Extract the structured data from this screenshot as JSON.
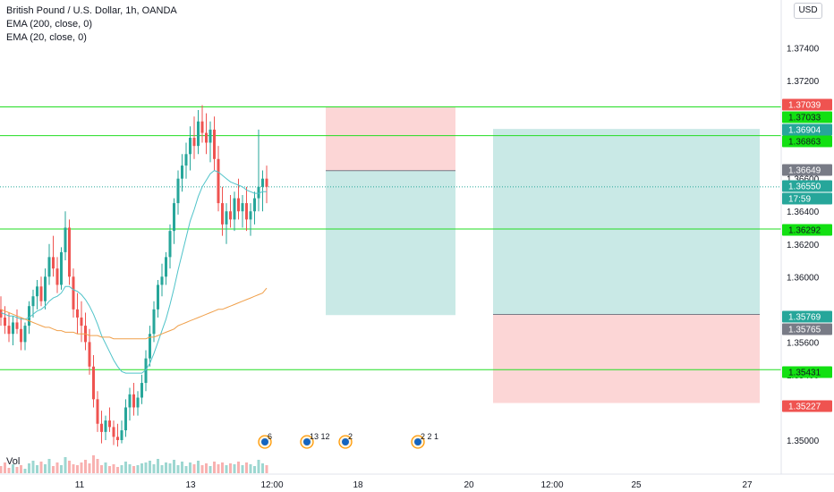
{
  "legend": {
    "symbol": "British Pound / U.S. Dollar, 1h, OANDA",
    "ema200": "EMA (200, close, 0)",
    "ema20": "EMA (20, close, 0)"
  },
  "currency_button": "USD",
  "volume_label": "Vol",
  "colors": {
    "up": "#26a69a",
    "down": "#ef5350",
    "ema20": "#4fc3c9",
    "ema200": "#f0a04b",
    "hline": "#22dd22",
    "tag_green": "#12e012",
    "tag_red": "#ef5350",
    "tag_grey": "#787b86",
    "tag_teal": "#26a69a",
    "tag_dark": "#131722",
    "profit_zone": "#b2dfdb",
    "loss_zone": "#fbcfcf"
  },
  "chart_data": {
    "type": "candlestick",
    "title": "British Pound / U.S. Dollar, 1h, OANDA",
    "y_axis": {
      "range": [
        1.3495,
        1.3765
      ],
      "tick_labels": [
        "1.37400",
        "1.37200",
        "1.36600",
        "1.36400",
        "1.36200",
        "1.36000",
        "1.35600",
        "1.35400",
        "1.35000"
      ],
      "tick_values": [
        1.374,
        1.372,
        1.366,
        1.364,
        1.362,
        1.36,
        1.356,
        1.354,
        1.35
      ]
    },
    "x_axis": {
      "tick_labels": [
        "11",
        "13",
        "12:00",
        "18",
        "20",
        "12:00",
        "25",
        "27"
      ]
    },
    "horizontal_lines": [
      1.37039,
      1.36863,
      1.36292,
      1.35431
    ],
    "price_tags": [
      {
        "label": "1.37039",
        "value": 1.37039,
        "style": "red"
      },
      {
        "label": "1.37033",
        "value": 1.37033,
        "style": "green"
      },
      {
        "label": "1.36904",
        "value": 1.36904,
        "style": "teal"
      },
      {
        "label": "1.36863",
        "value": 1.36863,
        "style": "green"
      },
      {
        "label": "1.36649",
        "value": 1.36649,
        "style": "grey"
      },
      {
        "label": "1.36550",
        "value": 1.3655,
        "style": "teal"
      },
      {
        "label": "17:59",
        "value": 1.3635,
        "style": "teal"
      },
      {
        "label": "1.36292",
        "value": 1.36292,
        "style": "green"
      },
      {
        "label": "1.35769",
        "value": 1.35769,
        "style": "teal"
      },
      {
        "label": "1.35765",
        "value": 1.35765,
        "style": "grey"
      },
      {
        "label": "1.35431",
        "value": 1.35431,
        "style": "green"
      },
      {
        "label": "1.35227",
        "value": 1.35227,
        "style": "red"
      }
    ],
    "positions": [
      {
        "name": "short",
        "entry": 1.36649,
        "stop": 1.37039,
        "target": 1.35765
      },
      {
        "name": "long",
        "entry": 1.35769,
        "stop": 1.35227,
        "target": 1.36904
      }
    ],
    "last_price": 1.3655,
    "candles": [
      [
        1.358,
        1.3588,
        1.357,
        1.3575
      ],
      [
        1.3575,
        1.3582,
        1.3565,
        1.357
      ],
      [
        1.357,
        1.3578,
        1.356,
        1.3565
      ],
      [
        1.3565,
        1.3576,
        1.3558,
        1.3572
      ],
      [
        1.3572,
        1.358,
        1.3565,
        1.3568
      ],
      [
        1.3568,
        1.3575,
        1.3555,
        1.356
      ],
      [
        1.356,
        1.3572,
        1.3555,
        1.357
      ],
      [
        1.357,
        1.3585,
        1.3565,
        1.3582
      ],
      [
        1.3582,
        1.3592,
        1.3575,
        1.3588
      ],
      [
        1.3588,
        1.3598,
        1.358,
        1.3594
      ],
      [
        1.3594,
        1.36,
        1.3582,
        1.3585
      ],
      [
        1.3585,
        1.3605,
        1.358,
        1.36
      ],
      [
        1.36,
        1.362,
        1.3595,
        1.3612
      ],
      [
        1.3612,
        1.3625,
        1.36,
        1.3605
      ],
      [
        1.3605,
        1.3612,
        1.359,
        1.3595
      ],
      [
        1.3595,
        1.3618,
        1.3592,
        1.3615
      ],
      [
        1.3615,
        1.364,
        1.361,
        1.363
      ],
      [
        1.363,
        1.3635,
        1.3595,
        1.36
      ],
      [
        1.36,
        1.3605,
        1.3575,
        1.358
      ],
      [
        1.358,
        1.359,
        1.3565,
        1.3575
      ],
      [
        1.3575,
        1.3585,
        1.356,
        1.357
      ],
      [
        1.357,
        1.3578,
        1.3555,
        1.356
      ],
      [
        1.356,
        1.3568,
        1.354,
        1.3545
      ],
      [
        1.3545,
        1.3552,
        1.352,
        1.3525
      ],
      [
        1.3525,
        1.353,
        1.3505,
        1.351
      ],
      [
        1.351,
        1.3518,
        1.3498,
        1.3505
      ],
      [
        1.3505,
        1.3515,
        1.35,
        1.3512
      ],
      [
        1.3512,
        1.352,
        1.3505,
        1.3508
      ],
      [
        1.3508,
        1.3512,
        1.3497,
        1.3502
      ],
      [
        1.3502,
        1.351,
        1.3496,
        1.35
      ],
      [
        1.35,
        1.3512,
        1.3498,
        1.3506
      ],
      [
        1.3506,
        1.3525,
        1.3502,
        1.352
      ],
      [
        1.352,
        1.3532,
        1.3512,
        1.3528
      ],
      [
        1.3528,
        1.3535,
        1.3515,
        1.352
      ],
      [
        1.352,
        1.353,
        1.3515,
        1.3526
      ],
      [
        1.3526,
        1.354,
        1.3522,
        1.3535
      ],
      [
        1.3535,
        1.3555,
        1.353,
        1.355
      ],
      [
        1.355,
        1.357,
        1.3545,
        1.3565
      ],
      [
        1.3565,
        1.3585,
        1.356,
        1.358
      ],
      [
        1.358,
        1.3598,
        1.3575,
        1.3595
      ],
      [
        1.3595,
        1.3608,
        1.3588,
        1.36
      ],
      [
        1.36,
        1.3615,
        1.3595,
        1.3612
      ],
      [
        1.3612,
        1.3632,
        1.3605,
        1.3628
      ],
      [
        1.3628,
        1.3648,
        1.362,
        1.3645
      ],
      [
        1.3645,
        1.3665,
        1.3638,
        1.366
      ],
      [
        1.366,
        1.3675,
        1.3652,
        1.3668
      ],
      [
        1.3668,
        1.3682,
        1.366,
        1.3675
      ],
      [
        1.3675,
        1.3692,
        1.3665,
        1.3685
      ],
      [
        1.3685,
        1.3698,
        1.3672,
        1.368
      ],
      [
        1.368,
        1.3702,
        1.3675,
        1.3695
      ],
      [
        1.3695,
        1.3705,
        1.3682,
        1.3688
      ],
      [
        1.3688,
        1.37,
        1.3675,
        1.3682
      ],
      [
        1.3682,
        1.3695,
        1.367,
        1.369
      ],
      [
        1.369,
        1.3698,
        1.3665,
        1.3672
      ],
      [
        1.3672,
        1.368,
        1.364,
        1.3645
      ],
      [
        1.3645,
        1.3655,
        1.3625,
        1.3632
      ],
      [
        1.3632,
        1.3645,
        1.362,
        1.364
      ],
      [
        1.364,
        1.365,
        1.363,
        1.3635
      ],
      [
        1.3635,
        1.3652,
        1.3628,
        1.3648
      ],
      [
        1.3648,
        1.366,
        1.3635,
        1.364
      ],
      [
        1.364,
        1.365,
        1.363,
        1.3645
      ],
      [
        1.3645,
        1.3655,
        1.3628,
        1.3635
      ],
      [
        1.3635,
        1.3645,
        1.3625,
        1.364
      ],
      [
        1.364,
        1.3652,
        1.3632,
        1.3648
      ],
      [
        1.3648,
        1.369,
        1.364,
        1.3655
      ],
      [
        1.3655,
        1.3665,
        1.364,
        1.366
      ],
      [
        1.366,
        1.3668,
        1.3645,
        1.3655
      ]
    ],
    "ema20": [
      1.3578,
      1.3577,
      1.3576,
      1.3576,
      1.3575,
      1.3574,
      1.3574,
      1.3575,
      1.3577,
      1.3579,
      1.358,
      1.3582,
      1.3585,
      1.3587,
      1.3588,
      1.359,
      1.3594,
      1.3594,
      1.3592,
      1.3591,
      1.3589,
      1.3586,
      1.3582,
      1.3577,
      1.3571,
      1.3564,
      1.3559,
      1.3554,
      1.3549,
      1.3545,
      1.3542,
      1.3541,
      1.3541,
      1.3541,
      1.3541,
      1.3541,
      1.3543,
      1.3547,
      1.3553,
      1.356,
      1.3567,
      1.3574,
      1.3583,
      1.3593,
      1.3604,
      1.3614,
      1.3624,
      1.3634,
      1.3641,
      1.3649,
      1.3655,
      1.3659,
      1.3663,
      1.3665,
      1.3664,
      1.3662,
      1.366,
      1.3658,
      1.3657,
      1.3656,
      1.3655,
      1.3653,
      1.3652,
      1.3651,
      1.3651,
      1.3652,
      1.3652
    ],
    "ema200": [
      1.358,
      1.3579,
      1.3578,
      1.3577,
      1.3576,
      1.3575,
      1.3574,
      1.3573,
      1.3572,
      1.3571,
      1.357,
      1.3569,
      1.3569,
      1.3568,
      1.3567,
      1.3567,
      1.3566,
      1.3566,
      1.3566,
      1.3565,
      1.3565,
      1.3565,
      1.3564,
      1.3564,
      1.3564,
      1.3563,
      1.3563,
      1.3563,
      1.3562,
      1.3562,
      1.3562,
      1.3562,
      1.3562,
      1.3562,
      1.3562,
      1.3562,
      1.3562,
      1.3563,
      1.3563,
      1.3564,
      1.3565,
      1.3566,
      1.3567,
      1.3568,
      1.357,
      1.3571,
      1.3572,
      1.3573,
      1.3574,
      1.3575,
      1.3576,
      1.3577,
      1.3578,
      1.3579,
      1.358,
      1.358,
      1.3581,
      1.3582,
      1.3583,
      1.3584,
      1.3585,
      1.3586,
      1.3587,
      1.3588,
      1.3589,
      1.359,
      1.3593
    ],
    "volume": [
      8,
      12,
      6,
      10,
      7,
      9,
      5,
      11,
      14,
      9,
      13,
      10,
      16,
      8,
      12,
      9,
      18,
      14,
      10,
      9,
      12,
      15,
      11,
      20,
      16,
      9,
      12,
      8,
      10,
      7,
      9,
      13,
      10,
      8,
      9,
      11,
      12,
      14,
      10,
      16,
      9,
      12,
      11,
      15,
      9,
      13,
      8,
      12,
      10,
      14,
      9,
      11,
      8,
      13,
      10,
      12,
      9,
      11,
      10,
      13,
      9,
      12,
      10,
      8,
      15,
      11,
      9
    ],
    "events": [
      {
        "label": "6"
      },
      {
        "label": "13 12"
      },
      {
        "label": "2"
      },
      {
        "label": "2 2 1"
      }
    ]
  }
}
